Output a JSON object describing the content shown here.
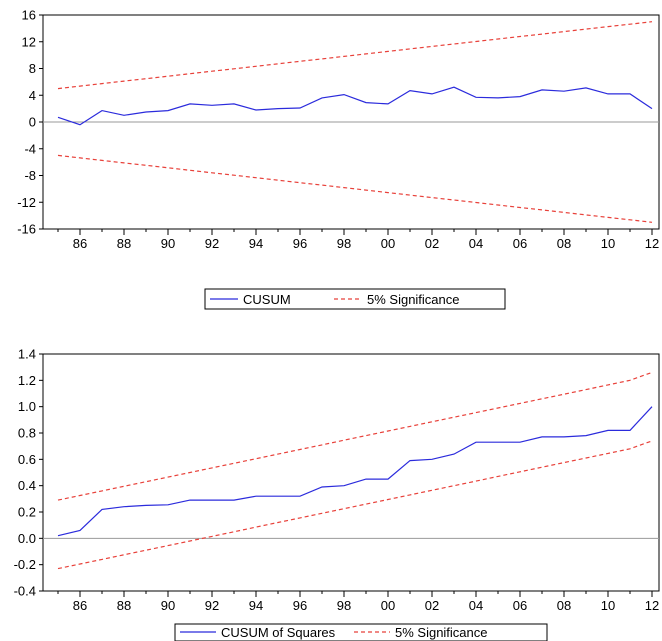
{
  "chart_data": [
    {
      "type": "line",
      "x": [
        "1985",
        "1986",
        "1987",
        "1988",
        "1989",
        "1990",
        "1991",
        "1992",
        "1993",
        "1994",
        "1995",
        "1996",
        "1997",
        "1998",
        "1999",
        "2000",
        "2001",
        "2002",
        "2003",
        "2004",
        "2005",
        "2006",
        "2007",
        "2008",
        "2009",
        "2010",
        "2011",
        "2012"
      ],
      "x_tick_labels": [
        "86",
        "88",
        "90",
        "92",
        "94",
        "96",
        "98",
        "00",
        "02",
        "04",
        "06",
        "08",
        "10",
        "12"
      ],
      "series": [
        {
          "name": "CUSUM",
          "color": "#2b2bdc",
          "style": "solid",
          "values": [
            0.7,
            -0.4,
            1.7,
            1.0,
            1.5,
            1.7,
            2.7,
            2.5,
            2.7,
            1.8,
            2.0,
            2.1,
            3.6,
            4.1,
            2.9,
            2.7,
            4.7,
            4.2,
            5.2,
            3.7,
            3.6,
            3.8,
            4.8,
            4.6,
            5.1,
            4.2,
            4.2,
            2.0
          ]
        },
        {
          "name": "5% Significance",
          "color": "#e8413a",
          "style": "dashed",
          "values": [
            5.0,
            5.37,
            5.74,
            6.11,
            6.48,
            6.85,
            7.22,
            7.59,
            7.96,
            8.33,
            8.7,
            9.07,
            9.44,
            9.81,
            10.19,
            10.56,
            10.93,
            11.3,
            11.67,
            12.04,
            12.41,
            12.78,
            13.15,
            13.52,
            13.89,
            14.26,
            14.63,
            15.0
          ]
        },
        {
          "name": "",
          "color": "#e8413a",
          "style": "dashed",
          "values": [
            -5.0,
            -5.37,
            -5.74,
            -6.11,
            -6.48,
            -6.85,
            -7.22,
            -7.59,
            -7.96,
            -8.33,
            -8.7,
            -9.07,
            -9.44,
            -9.81,
            -10.19,
            -10.56,
            -10.93,
            -11.3,
            -11.67,
            -12.04,
            -12.41,
            -12.78,
            -13.15,
            -13.52,
            -13.89,
            -14.26,
            -14.63,
            -15.0
          ]
        }
      ],
      "y_ticks": [
        "16",
        "12",
        "8",
        "4",
        "0",
        "-4",
        "-8",
        "-12",
        "-16"
      ],
      "ylim": [
        -16,
        16
      ],
      "zero_line": true,
      "legend": {
        "position": "bottom",
        "entries": [
          "CUSUM",
          "5% Significance"
        ]
      }
    },
    {
      "type": "line",
      "x": [
        "1985",
        "1986",
        "1987",
        "1988",
        "1989",
        "1990",
        "1991",
        "1992",
        "1993",
        "1994",
        "1995",
        "1996",
        "1997",
        "1998",
        "1999",
        "2000",
        "2001",
        "2002",
        "2003",
        "2004",
        "2005",
        "2006",
        "2007",
        "2008",
        "2009",
        "2010",
        "2011",
        "2012"
      ],
      "x_tick_labels": [
        "86",
        "88",
        "90",
        "92",
        "94",
        "96",
        "98",
        "00",
        "02",
        "04",
        "06",
        "08",
        "10",
        "12"
      ],
      "series": [
        {
          "name": "CUSUM of Squares",
          "color": "#2b2bdc",
          "style": "solid",
          "values": [
            0.02,
            0.06,
            0.22,
            0.24,
            0.25,
            0.255,
            0.29,
            0.29,
            0.29,
            0.32,
            0.32,
            0.32,
            0.39,
            0.4,
            0.45,
            0.45,
            0.59,
            0.6,
            0.64,
            0.73,
            0.73,
            0.73,
            0.77,
            0.77,
            0.78,
            0.82,
            0.82,
            1.0
          ]
        },
        {
          "name": "5% Significance",
          "color": "#e8413a",
          "style": "dashed",
          "values": [
            0.29,
            0.325,
            0.36,
            0.395,
            0.43,
            0.465,
            0.5,
            0.535,
            0.57,
            0.605,
            0.64,
            0.675,
            0.71,
            0.745,
            0.78,
            0.815,
            0.85,
            0.885,
            0.92,
            0.955,
            0.99,
            1.025,
            1.06,
            1.095,
            1.13,
            1.165,
            1.2,
            1.26
          ]
        },
        {
          "name": "",
          "color": "#e8413a",
          "style": "dashed",
          "values": [
            -0.23,
            -0.195,
            -0.16,
            -0.125,
            -0.09,
            -0.055,
            -0.02,
            0.015,
            0.05,
            0.085,
            0.12,
            0.155,
            0.19,
            0.225,
            0.26,
            0.295,
            0.33,
            0.365,
            0.4,
            0.435,
            0.47,
            0.505,
            0.54,
            0.575,
            0.61,
            0.645,
            0.68,
            0.74
          ]
        }
      ],
      "y_ticks": [
        "1.4",
        "1.2",
        "1.0",
        "0.8",
        "0.6",
        "0.4",
        "0.2",
        "0.0",
        "-0.2",
        "-0.4"
      ],
      "ylim": [
        -0.4,
        1.4
      ],
      "zero_line": true,
      "legend": {
        "position": "bottom",
        "entries": [
          "CUSUM of Squares",
          "5% Significance"
        ]
      }
    }
  ]
}
